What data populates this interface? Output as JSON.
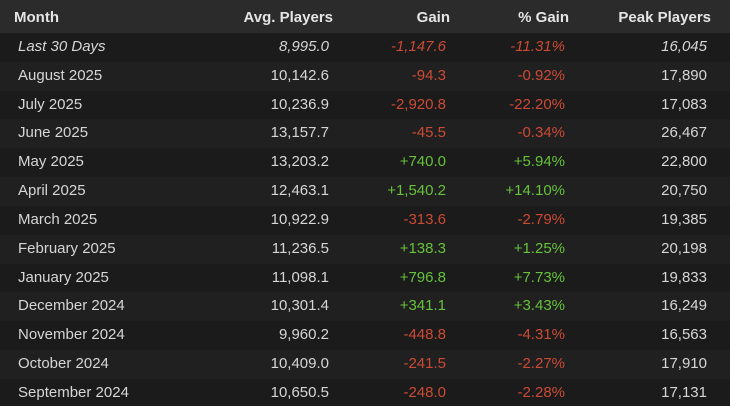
{
  "table": {
    "header": [
      "Month",
      "Avg. Players",
      "Gain",
      "% Gain",
      "Peak Players"
    ],
    "rows": [
      [
        "Last 30 Days",
        "8,995.0",
        "-1,147.6",
        "-11.31%",
        "16,045"
      ],
      [
        "August 2025",
        "10,142.6",
        "-94.3",
        "-0.92%",
        "17,890"
      ],
      [
        "July 2025",
        "10,236.9",
        "-2,920.8",
        "-22.20%",
        "17,083"
      ],
      [
        "June 2025",
        "13,157.7",
        "-45.5",
        "-0.34%",
        "26,467"
      ],
      [
        "May 2025",
        "13,203.2",
        "+740.0",
        "+5.94%",
        "22,800"
      ],
      [
        "April 2025",
        "12,463.1",
        "+1,540.2",
        "+14.10%",
        "20,750"
      ],
      [
        "March 2025",
        "10,922.9",
        "-313.6",
        "-2.79%",
        "19,385"
      ],
      [
        "February 2025",
        "11,236.5",
        "+138.3",
        "+1.25%",
        "20,198"
      ],
      [
        "January 2025",
        "11,098.1",
        "+796.8",
        "+7.73%",
        "19,833"
      ],
      [
        "December 2024",
        "10,301.4",
        "+341.1",
        "+3.43%",
        "16,249"
      ],
      [
        "November 2024",
        "9,960.2",
        "-448.8",
        "-4.31%",
        "16,563"
      ],
      [
        "October 2024",
        "10,409.0",
        "-241.5",
        "-2.27%",
        "17,910"
      ],
      [
        "September 2024",
        "10,650.5",
        "-248.0",
        "-2.28%",
        "17,131"
      ]
    ],
    "colors": {
      "positive": "#66c23a",
      "negative": "#cc4a35"
    }
  }
}
